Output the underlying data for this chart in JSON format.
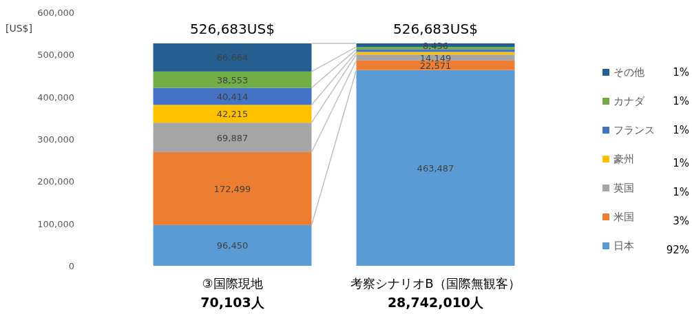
{
  "chart_data": {
    "type": "bar",
    "stacked": true,
    "ylabel": "[US$]",
    "categories": [
      "③国際現地",
      "考察シナリオB（国際無観客）"
    ],
    "ylim": [
      0,
      600000
    ],
    "yticks": [
      {
        "value": 0,
        "label": "0"
      },
      {
        "value": 100000,
        "label": "100,000"
      },
      {
        "value": 200000,
        "label": "200,000"
      },
      {
        "value": 300000,
        "label": "300,000"
      },
      {
        "value": 400000,
        "label": "400,000"
      },
      {
        "value": 500000,
        "label": "500,000"
      },
      {
        "value": 600000,
        "label": "600,000"
      }
    ],
    "series": [
      {
        "name": "日本",
        "color": "#5b9bd5",
        "values": [
          96450,
          463487
        ],
        "value_labels": [
          "96,450",
          "463,487"
        ]
      },
      {
        "name": "米国",
        "color": "#ed7d31",
        "values": [
          172499,
          22571
        ],
        "value_labels": [
          "172,499",
          "22,571"
        ]
      },
      {
        "name": "英国",
        "color": "#a5a5a5",
        "values": [
          69887,
          14149
        ],
        "value_labels": [
          "69,887",
          "14,149"
        ]
      },
      {
        "name": "豪州",
        "color": "#ffc000",
        "values": [
          42215,
          6000
        ],
        "value_labels": [
          "42,215",
          null
        ]
      },
      {
        "name": "フランス",
        "color": "#4472c4",
        "values": [
          40414,
          6000
        ],
        "value_labels": [
          "40,414",
          null
        ]
      },
      {
        "name": "カナダ",
        "color": "#70ad47",
        "values": [
          38553,
          6040
        ],
        "value_labels": [
          "38,553",
          null
        ]
      },
      {
        "name": "その他",
        "color": "#255e91",
        "values": [
          66664,
          8436
        ],
        "value_labels": [
          "66,664",
          "8,436"
        ]
      }
    ],
    "totals": [
      "526,683US$",
      "526,683US$"
    ],
    "legend": "right",
    "annotations": [
      "70,103人",
      "28,742,010人",
      "92%",
      "3%",
      "1%",
      "1%",
      "1%",
      "1%",
      "1%"
    ]
  }
}
